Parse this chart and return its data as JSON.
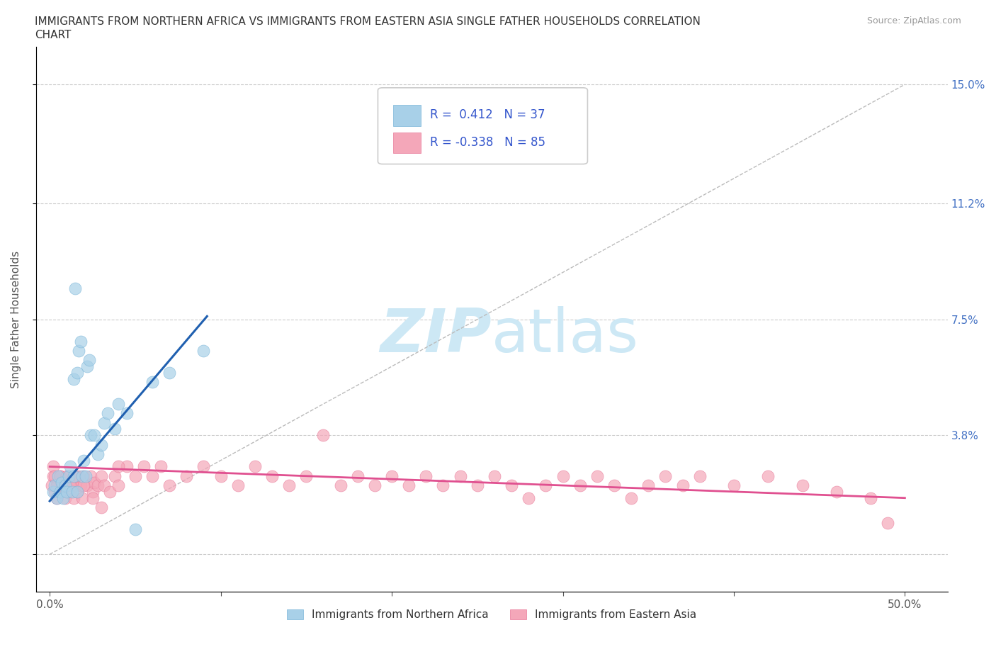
{
  "title_line1": "IMMIGRANTS FROM NORTHERN AFRICA VS IMMIGRANTS FROM EASTERN ASIA SINGLE FATHER HOUSEHOLDS CORRELATION",
  "title_line2": "CHART",
  "source": "Source: ZipAtlas.com",
  "ylabel": "Single Father Households",
  "xlim": [
    -0.008,
    0.525
  ],
  "ylim": [
    -0.012,
    0.162
  ],
  "blue_R": 0.412,
  "blue_N": 37,
  "pink_R": -0.338,
  "pink_N": 85,
  "blue_color": "#a8d0e8",
  "pink_color": "#f4a7b9",
  "blue_edge_color": "#7ab5d8",
  "pink_edge_color": "#e87a9a",
  "blue_line_color": "#2060b0",
  "pink_line_color": "#e05090",
  "diag_color": "#bbbbbb",
  "watermark_color": "#cde8f5",
  "legend_label_blue": "Immigrants from Northern Africa",
  "legend_label_pink": "Immigrants from Eastern Asia",
  "y_tick_positions": [
    0.0,
    0.038,
    0.075,
    0.112,
    0.15
  ],
  "y_tick_labels": [
    "",
    "3.8%",
    "7.5%",
    "11.2%",
    "15.0%"
  ],
  "blue_trend_x": [
    0.0,
    0.092
  ],
  "blue_trend_y": [
    0.017,
    0.076
  ],
  "pink_trend_x": [
    0.0,
    0.5
  ],
  "pink_trend_y": [
    0.028,
    0.018
  ],
  "blue_x": [
    0.002,
    0.003,
    0.004,
    0.005,
    0.006,
    0.007,
    0.008,
    0.009,
    0.01,
    0.011,
    0.012,
    0.013,
    0.014,
    0.015,
    0.016,
    0.017,
    0.018,
    0.019,
    0.02,
    0.021,
    0.022,
    0.023,
    0.024,
    0.026,
    0.028,
    0.03,
    0.032,
    0.034,
    0.038,
    0.04,
    0.045,
    0.05,
    0.06,
    0.07,
    0.09,
    0.014,
    0.016
  ],
  "blue_y": [
    0.02,
    0.022,
    0.018,
    0.025,
    0.02,
    0.023,
    0.018,
    0.022,
    0.02,
    0.025,
    0.028,
    0.02,
    0.025,
    0.085,
    0.02,
    0.065,
    0.068,
    0.025,
    0.03,
    0.025,
    0.06,
    0.062,
    0.038,
    0.038,
    0.032,
    0.035,
    0.042,
    0.045,
    0.04,
    0.048,
    0.045,
    0.008,
    0.055,
    0.058,
    0.065,
    0.056,
    0.058
  ],
  "pink_x": [
    0.001,
    0.002,
    0.003,
    0.004,
    0.005,
    0.006,
    0.007,
    0.008,
    0.009,
    0.01,
    0.011,
    0.012,
    0.013,
    0.014,
    0.015,
    0.016,
    0.017,
    0.018,
    0.019,
    0.02,
    0.022,
    0.024,
    0.025,
    0.026,
    0.028,
    0.03,
    0.032,
    0.035,
    0.038,
    0.04,
    0.045,
    0.05,
    0.055,
    0.06,
    0.065,
    0.07,
    0.08,
    0.09,
    0.1,
    0.11,
    0.12,
    0.13,
    0.14,
    0.15,
    0.16,
    0.17,
    0.18,
    0.19,
    0.2,
    0.21,
    0.22,
    0.23,
    0.24,
    0.25,
    0.26,
    0.27,
    0.28,
    0.29,
    0.3,
    0.31,
    0.32,
    0.33,
    0.34,
    0.35,
    0.36,
    0.37,
    0.38,
    0.4,
    0.42,
    0.44,
    0.46,
    0.48,
    0.49,
    0.002,
    0.003,
    0.004,
    0.006,
    0.008,
    0.01,
    0.012,
    0.015,
    0.02,
    0.025,
    0.03,
    0.04
  ],
  "pink_y": [
    0.022,
    0.025,
    0.02,
    0.018,
    0.022,
    0.025,
    0.02,
    0.023,
    0.018,
    0.022,
    0.025,
    0.02,
    0.023,
    0.018,
    0.022,
    0.02,
    0.025,
    0.022,
    0.018,
    0.025,
    0.022,
    0.025,
    0.02,
    0.023,
    0.022,
    0.025,
    0.022,
    0.02,
    0.025,
    0.022,
    0.028,
    0.025,
    0.028,
    0.025,
    0.028,
    0.022,
    0.025,
    0.028,
    0.025,
    0.022,
    0.028,
    0.025,
    0.022,
    0.025,
    0.038,
    0.022,
    0.025,
    0.022,
    0.025,
    0.022,
    0.025,
    0.022,
    0.025,
    0.022,
    0.025,
    0.022,
    0.018,
    0.022,
    0.025,
    0.022,
    0.025,
    0.022,
    0.018,
    0.022,
    0.025,
    0.022,
    0.025,
    0.022,
    0.025,
    0.022,
    0.02,
    0.018,
    0.01,
    0.028,
    0.025,
    0.022,
    0.025,
    0.022,
    0.025,
    0.022,
    0.025,
    0.022,
    0.018,
    0.015,
    0.028
  ]
}
